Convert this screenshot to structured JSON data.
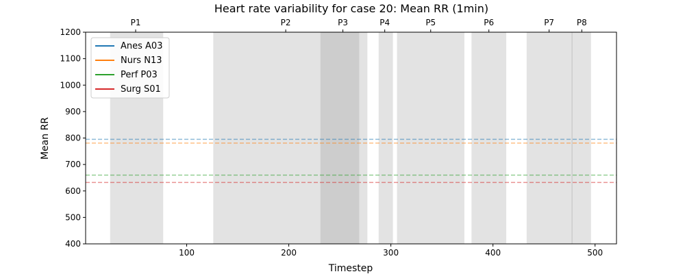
{
  "chart_data": {
    "type": "line",
    "title": "Heart rate variability for case 20: Mean RR (1min)",
    "xlabel": "Timestep",
    "ylabel": "Mean RR",
    "xlim": [
      1,
      521
    ],
    "ylim": [
      400,
      1200
    ],
    "xticks": [
      100,
      200,
      300,
      400,
      500
    ],
    "yticks": [
      400,
      500,
      600,
      700,
      800,
      900,
      1000,
      1100,
      1200
    ],
    "grid": false,
    "legend_position": "top-left",
    "series": [
      {
        "name": "Anes A03",
        "color": "#1f77b4",
        "style": "dashed",
        "y": 795
      },
      {
        "name": "Nurs N13",
        "color": "#ff7f0e",
        "style": "dashed",
        "y": 781
      },
      {
        "name": "Perf P03",
        "color": "#2ca02c",
        "style": "dashed",
        "y": 660
      },
      {
        "name": "Surg S01",
        "color": "#d62728",
        "style": "dashed",
        "y": 632
      }
    ],
    "phases": [
      {
        "label": "P1",
        "start": 25,
        "end": 77
      },
      {
        "label": "P2",
        "start": 126,
        "end": 269
      },
      {
        "label": "P3",
        "start": 231,
        "end": 277
      },
      {
        "label": "P4",
        "start": 288,
        "end": 302
      },
      {
        "label": "P5",
        "start": 306,
        "end": 372
      },
      {
        "label": "P6",
        "start": 379,
        "end": 413
      },
      {
        "label": "P7",
        "start": 433,
        "end": 478
      },
      {
        "label": "P8",
        "start": 477,
        "end": 496
      }
    ],
    "phase_label_x": [
      50,
      197,
      253,
      294,
      339,
      396,
      455,
      487
    ]
  }
}
